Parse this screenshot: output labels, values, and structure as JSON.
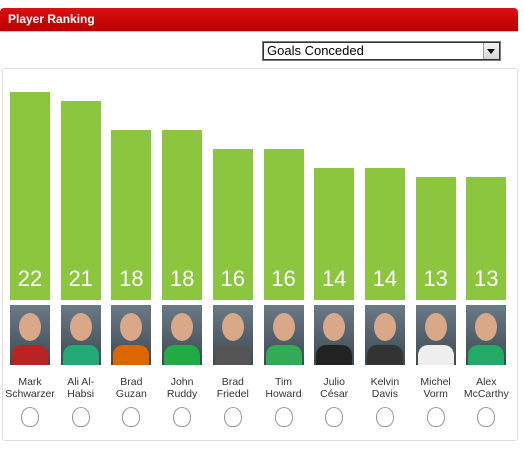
{
  "header": {
    "title": "Player Ranking"
  },
  "selector": {
    "selected": "Goals Conceded"
  },
  "chart_data": {
    "type": "bar",
    "categories": [
      "Mark Schwarzer",
      "Ali Al-Habsi",
      "Brad Guzan",
      "John Ruddy",
      "Brad Friedel",
      "Tim Howard",
      "Julio César",
      "Kelvin Davis",
      "Michel Vorm",
      "Alex McCarthy"
    ],
    "values": [
      22,
      21,
      18,
      18,
      16,
      16,
      14,
      14,
      13,
      13
    ],
    "color": "#8cc63f"
  }
}
